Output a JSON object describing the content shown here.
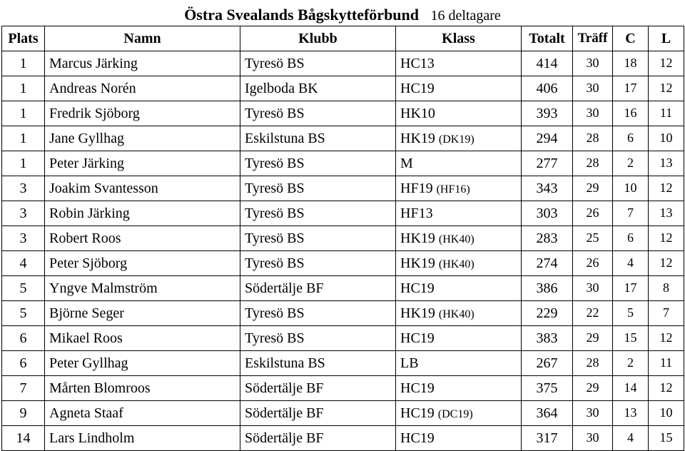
{
  "title": {
    "main": "Östra Svealands Bågskytteförbund",
    "sub": "16 deltagare"
  },
  "headers": {
    "plats": "Plats",
    "namn": "Namn",
    "klubb": "Klubb",
    "klass": "Klass",
    "totalt": "Totalt",
    "traff": "Träff",
    "c": "C",
    "l": "L"
  },
  "rows": [
    {
      "plats": "1",
      "namn": "Marcus Järking",
      "klubb": "Tyresö BS",
      "klass": "HC13",
      "klass_sub": "",
      "totalt": "414",
      "traff": "30",
      "c": "18",
      "l": "12"
    },
    {
      "plats": "1",
      "namn": "Andreas Norén",
      "klubb": "Igelboda BK",
      "klass": "HC19",
      "klass_sub": "",
      "totalt": "406",
      "traff": "30",
      "c": "17",
      "l": "12"
    },
    {
      "plats": "1",
      "namn": "Fredrik Sjöborg",
      "klubb": "Tyresö BS",
      "klass": "HK10",
      "klass_sub": "",
      "totalt": "393",
      "traff": "30",
      "c": "16",
      "l": "11"
    },
    {
      "plats": "1",
      "namn": "Jane Gyllhag",
      "klubb": "Eskilstuna BS",
      "klass": "HK19 ",
      "klass_sub": "(DK19)",
      "totalt": "294",
      "traff": "28",
      "c": "6",
      "l": "10"
    },
    {
      "plats": "1",
      "namn": "Peter Järking",
      "klubb": "Tyresö BS",
      "klass": "M",
      "klass_sub": "",
      "totalt": "277",
      "traff": "28",
      "c": "2",
      "l": "13"
    },
    {
      "plats": "3",
      "namn": "Joakim Svantesson",
      "klubb": "Tyresö BS",
      "klass": "HF19 ",
      "klass_sub": "(HF16)",
      "totalt": "343",
      "traff": "29",
      "c": "10",
      "l": "12"
    },
    {
      "plats": "3",
      "namn": "Robin Järking",
      "klubb": "Tyresö BS",
      "klass": "HF13",
      "klass_sub": "",
      "totalt": "303",
      "traff": "26",
      "c": "7",
      "l": "13"
    },
    {
      "plats": "3",
      "namn": "Robert Roos",
      "klubb": "Tyresö BS",
      "klass": "HK19 ",
      "klass_sub": "(HK40)",
      "totalt": "283",
      "traff": "25",
      "c": "6",
      "l": "12"
    },
    {
      "plats": "4",
      "namn": "Peter Sjöborg",
      "klubb": "Tyresö BS",
      "klass": "HK19 ",
      "klass_sub": "(HK40)",
      "totalt": "274",
      "traff": "26",
      "c": "4",
      "l": "12"
    },
    {
      "plats": "5",
      "namn": "Yngve Malmström",
      "klubb": "Södertälje BF",
      "klass": "HC19",
      "klass_sub": "",
      "totalt": "386",
      "traff": "30",
      "c": "17",
      "l": "8"
    },
    {
      "plats": "5",
      "namn": "Björne Seger",
      "klubb": "Tyresö BS",
      "klass": "HK19 ",
      "klass_sub": "(HK40)",
      "totalt": "229",
      "traff": "22",
      "c": "5",
      "l": "7"
    },
    {
      "plats": "6",
      "namn": "Mikael Roos",
      "klubb": "Tyresö BS",
      "klass": "HC19",
      "klass_sub": "",
      "totalt": "383",
      "traff": "29",
      "c": "15",
      "l": "12"
    },
    {
      "plats": "6",
      "namn": "Peter Gyllhag",
      "klubb": "Eskilstuna BS",
      "klass": "LB",
      "klass_sub": "",
      "totalt": "267",
      "traff": "28",
      "c": "2",
      "l": "11"
    },
    {
      "plats": "7",
      "namn": "Mårten Blomroos",
      "klubb": "Södertälje BF",
      "klass": "HC19",
      "klass_sub": "",
      "totalt": "375",
      "traff": "29",
      "c": "14",
      "l": "12"
    },
    {
      "plats": "9",
      "namn": "Agneta Staaf",
      "klubb": "Södertälje BF",
      "klass": "HC19 ",
      "klass_sub": "(DC19)",
      "totalt": "364",
      "traff": "30",
      "c": "13",
      "l": "10"
    },
    {
      "plats": "14",
      "namn": "Lars Lindholm",
      "klubb": "Södertälje BF",
      "klass": "HC19",
      "klass_sub": "",
      "totalt": "317",
      "traff": "30",
      "c": "4",
      "l": "15"
    }
  ]
}
